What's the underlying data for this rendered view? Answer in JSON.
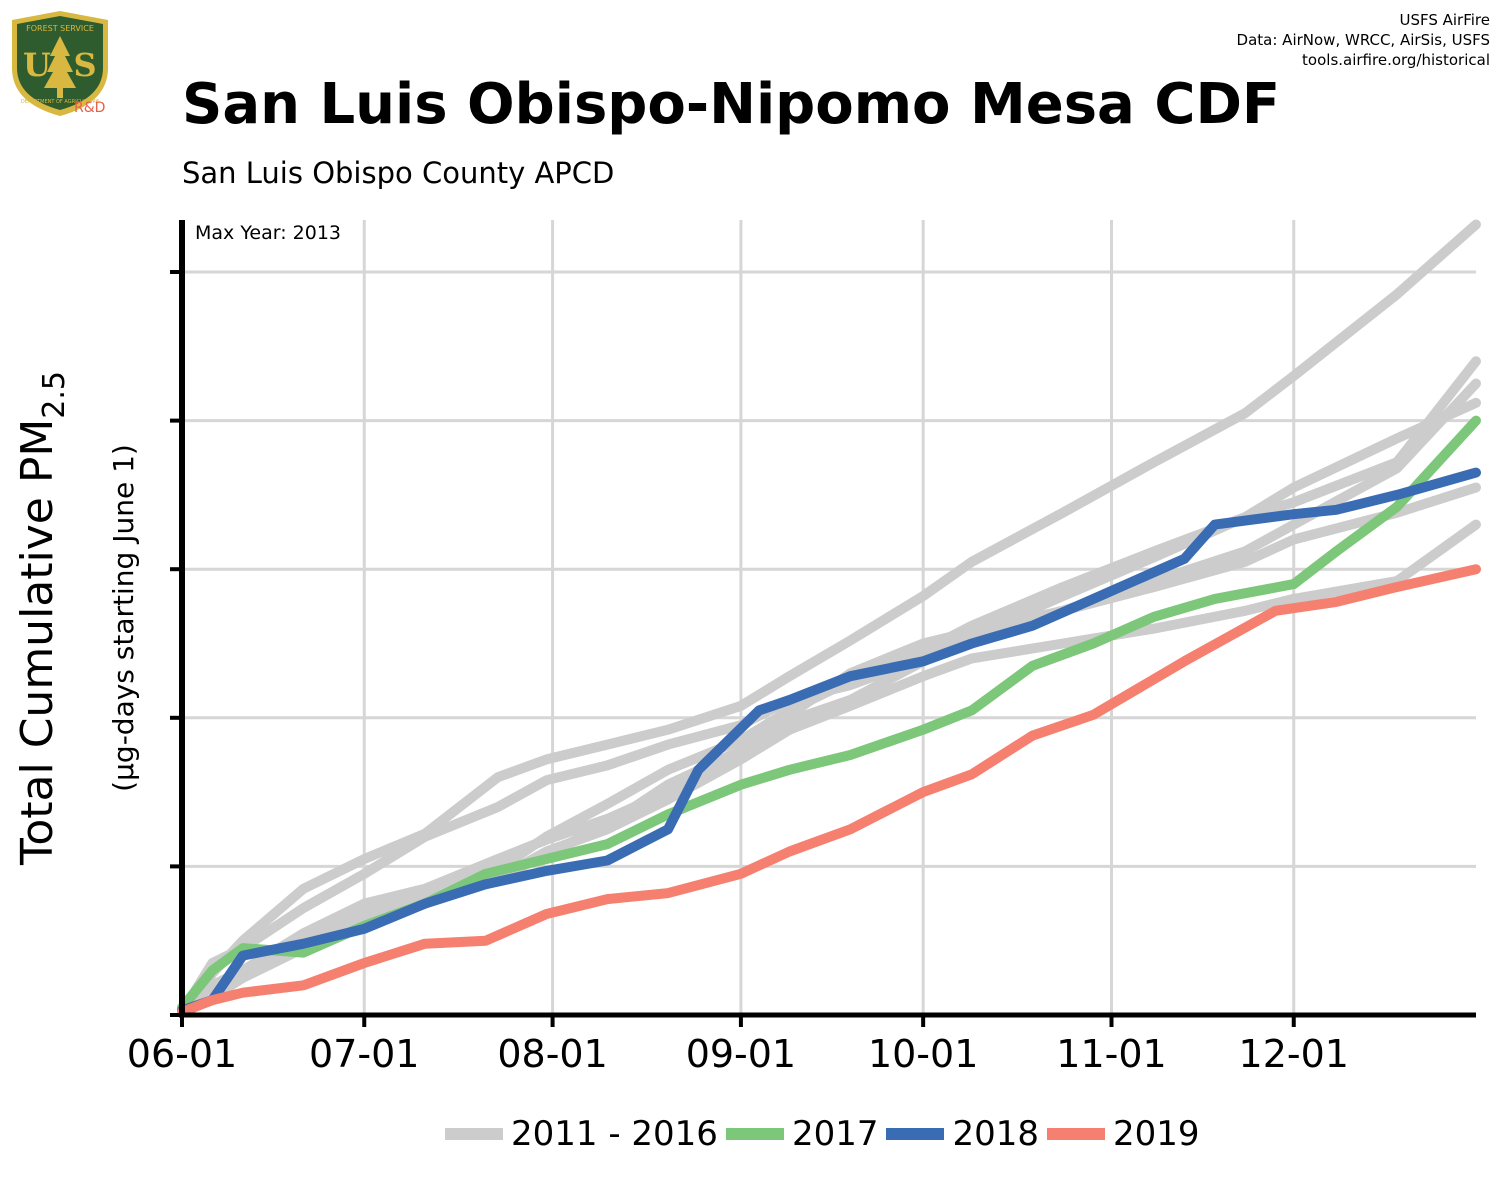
{
  "header": {
    "title": "San Luis Obispo-Nipomo Mesa CDF",
    "subtitle": "San Luis Obispo County APCD",
    "credits": [
      "USFS AirFire",
      "Data: AirNow, WRCC, AirSis, USFS",
      "tools.airfire.org/historical"
    ],
    "logo_text": "R&D",
    "logo_lettering": [
      "FOREST SERVICE",
      "U",
      "S",
      "DEPARTMENT OF AGRICULTURE"
    ]
  },
  "colors": {
    "history": "#cccccc",
    "y2017": "#7dc77b",
    "y2018": "#3a6cb3",
    "y2019": "#f6806f",
    "logo_green": "#2f5c2f",
    "logo_gold": "#d8b840",
    "grid": "#d6d6d6"
  },
  "chart_data": {
    "type": "line",
    "annotation": "Max Year: 2013",
    "ylabel": "Total Cumulative PM",
    "ylabel_sub": "2.5",
    "ylabel2": "(µg-days starting June 1)",
    "xlabel": "",
    "x_ticks": [
      "06-01",
      "07-01",
      "08-01",
      "09-01",
      "10-01",
      "11-01",
      "12-01"
    ],
    "x_tick_days": [
      0,
      30,
      61,
      92,
      122,
      153,
      183
    ],
    "xlim": [
      0,
      213
    ],
    "ylim": [
      0,
      5.35
    ],
    "y_ticks": [
      0,
      1,
      2,
      3,
      4,
      5
    ],
    "y_tick_labels_shown": false,
    "grid": true,
    "legend_position": "bottom",
    "series": [
      {
        "name": "2011 - 2016",
        "group": "history",
        "x": [
          0,
          5,
          10,
          20,
          30,
          40,
          52,
          60,
          70,
          80,
          92,
          100,
          110,
          122,
          130,
          145,
          160,
          175,
          183,
          200,
          213
        ],
        "y": [
          0.02,
          0.35,
          0.45,
          0.72,
          0.95,
          1.2,
          1.4,
          1.58,
          1.68,
          1.82,
          1.95,
          2.12,
          2.22,
          2.4,
          2.55,
          2.82,
          3.08,
          3.35,
          3.55,
          3.88,
          4.12
        ]
      },
      {
        "name": "",
        "group": "history",
        "x": [
          0,
          5,
          10,
          20,
          30,
          40,
          52,
          60,
          70,
          80,
          92,
          100,
          110,
          122,
          130,
          145,
          160,
          175,
          183,
          200,
          213
        ],
        "y": [
          0.02,
          0.28,
          0.5,
          0.85,
          1.05,
          1.22,
          1.6,
          1.72,
          1.82,
          1.92,
          2.08,
          2.28,
          2.52,
          2.82,
          3.05,
          3.38,
          3.72,
          4.05,
          4.3,
          4.85,
          5.32
        ]
      },
      {
        "name": "",
        "group": "history",
        "x": [
          0,
          5,
          10,
          20,
          30,
          40,
          52,
          60,
          70,
          80,
          92,
          100,
          110,
          122,
          130,
          145,
          160,
          175,
          183,
          200,
          213
        ],
        "y": [
          0.02,
          0.15,
          0.28,
          0.5,
          0.68,
          0.8,
          0.98,
          1.2,
          1.42,
          1.65,
          1.85,
          2.05,
          2.25,
          2.45,
          2.62,
          2.88,
          3.12,
          3.35,
          3.45,
          3.72,
          4.4
        ]
      },
      {
        "name": "",
        "group": "history",
        "x": [
          0,
          5,
          10,
          20,
          30,
          40,
          52,
          60,
          70,
          80,
          92,
          100,
          110,
          122,
          130,
          145,
          160,
          175,
          183,
          200,
          213
        ],
        "y": [
          0.02,
          0.2,
          0.3,
          0.55,
          0.75,
          0.85,
          1.05,
          1.18,
          1.32,
          1.5,
          1.75,
          1.98,
          2.12,
          2.38,
          2.55,
          2.72,
          2.92,
          3.12,
          3.3,
          3.68,
          4.25
        ]
      },
      {
        "name": "",
        "group": "history",
        "x": [
          0,
          5,
          10,
          20,
          30,
          40,
          52,
          60,
          70,
          80,
          92,
          100,
          110,
          122,
          130,
          145,
          160,
          175,
          183,
          200,
          213
        ],
        "y": [
          0.02,
          0.15,
          0.3,
          0.45,
          0.62,
          0.78,
          0.92,
          1.08,
          1.28,
          1.55,
          1.78,
          2.02,
          2.3,
          2.5,
          2.58,
          2.72,
          2.88,
          3.05,
          3.2,
          3.38,
          3.55
        ]
      },
      {
        "name": "",
        "group": "history",
        "x": [
          0,
          5,
          10,
          20,
          30,
          40,
          52,
          60,
          70,
          80,
          92,
          100,
          110,
          122,
          130,
          145,
          160,
          175,
          183,
          200,
          213
        ],
        "y": [
          0.02,
          0.12,
          0.25,
          0.45,
          0.6,
          0.75,
          0.92,
          1.1,
          1.25,
          1.45,
          1.72,
          1.92,
          2.08,
          2.28,
          2.4,
          2.5,
          2.6,
          2.72,
          2.8,
          2.92,
          3.3
        ]
      },
      {
        "name": "2017",
        "group": "2017",
        "x": [
          0,
          5,
          10,
          20,
          30,
          40,
          50,
          60,
          70,
          80,
          92,
          100,
          110,
          122,
          130,
          140,
          150,
          160,
          170,
          183,
          190,
          200,
          213
        ],
        "y": [
          0.05,
          0.3,
          0.45,
          0.42,
          0.6,
          0.75,
          0.95,
          1.05,
          1.15,
          1.35,
          1.55,
          1.65,
          1.75,
          1.92,
          2.05,
          2.35,
          2.5,
          2.68,
          2.8,
          2.9,
          3.12,
          3.42,
          4.0
        ]
      },
      {
        "name": "2018",
        "group": "2018",
        "x": [
          0,
          5,
          10,
          20,
          30,
          40,
          50,
          60,
          70,
          80,
          85,
          90,
          95,
          100,
          110,
          122,
          130,
          140,
          150,
          165,
          170,
          183,
          190,
          200,
          213
        ],
        "y": [
          0.03,
          0.1,
          0.4,
          0.48,
          0.58,
          0.75,
          0.88,
          0.97,
          1.04,
          1.25,
          1.65,
          1.85,
          2.05,
          2.12,
          2.28,
          2.38,
          2.5,
          2.62,
          2.8,
          3.07,
          3.3,
          3.37,
          3.4,
          3.5,
          3.65
        ]
      },
      {
        "name": "2019",
        "group": "2019",
        "x": [
          0,
          5,
          10,
          20,
          30,
          40,
          50,
          60,
          70,
          80,
          92,
          100,
          110,
          122,
          130,
          140,
          150,
          165,
          180,
          190,
          200,
          213
        ],
        "y": [
          0.02,
          0.1,
          0.15,
          0.2,
          0.35,
          0.48,
          0.5,
          0.68,
          0.78,
          0.82,
          0.95,
          1.1,
          1.25,
          1.5,
          1.62,
          1.88,
          2.02,
          2.38,
          2.72,
          2.78,
          2.88,
          3.0
        ]
      }
    ]
  },
  "legend": {
    "items": [
      {
        "label": "2011 - 2016",
        "color_key": "history"
      },
      {
        "label": "2017",
        "color_key": "y2017"
      },
      {
        "label": "2018",
        "color_key": "y2018"
      },
      {
        "label": "2019",
        "color_key": "y2019"
      }
    ]
  }
}
